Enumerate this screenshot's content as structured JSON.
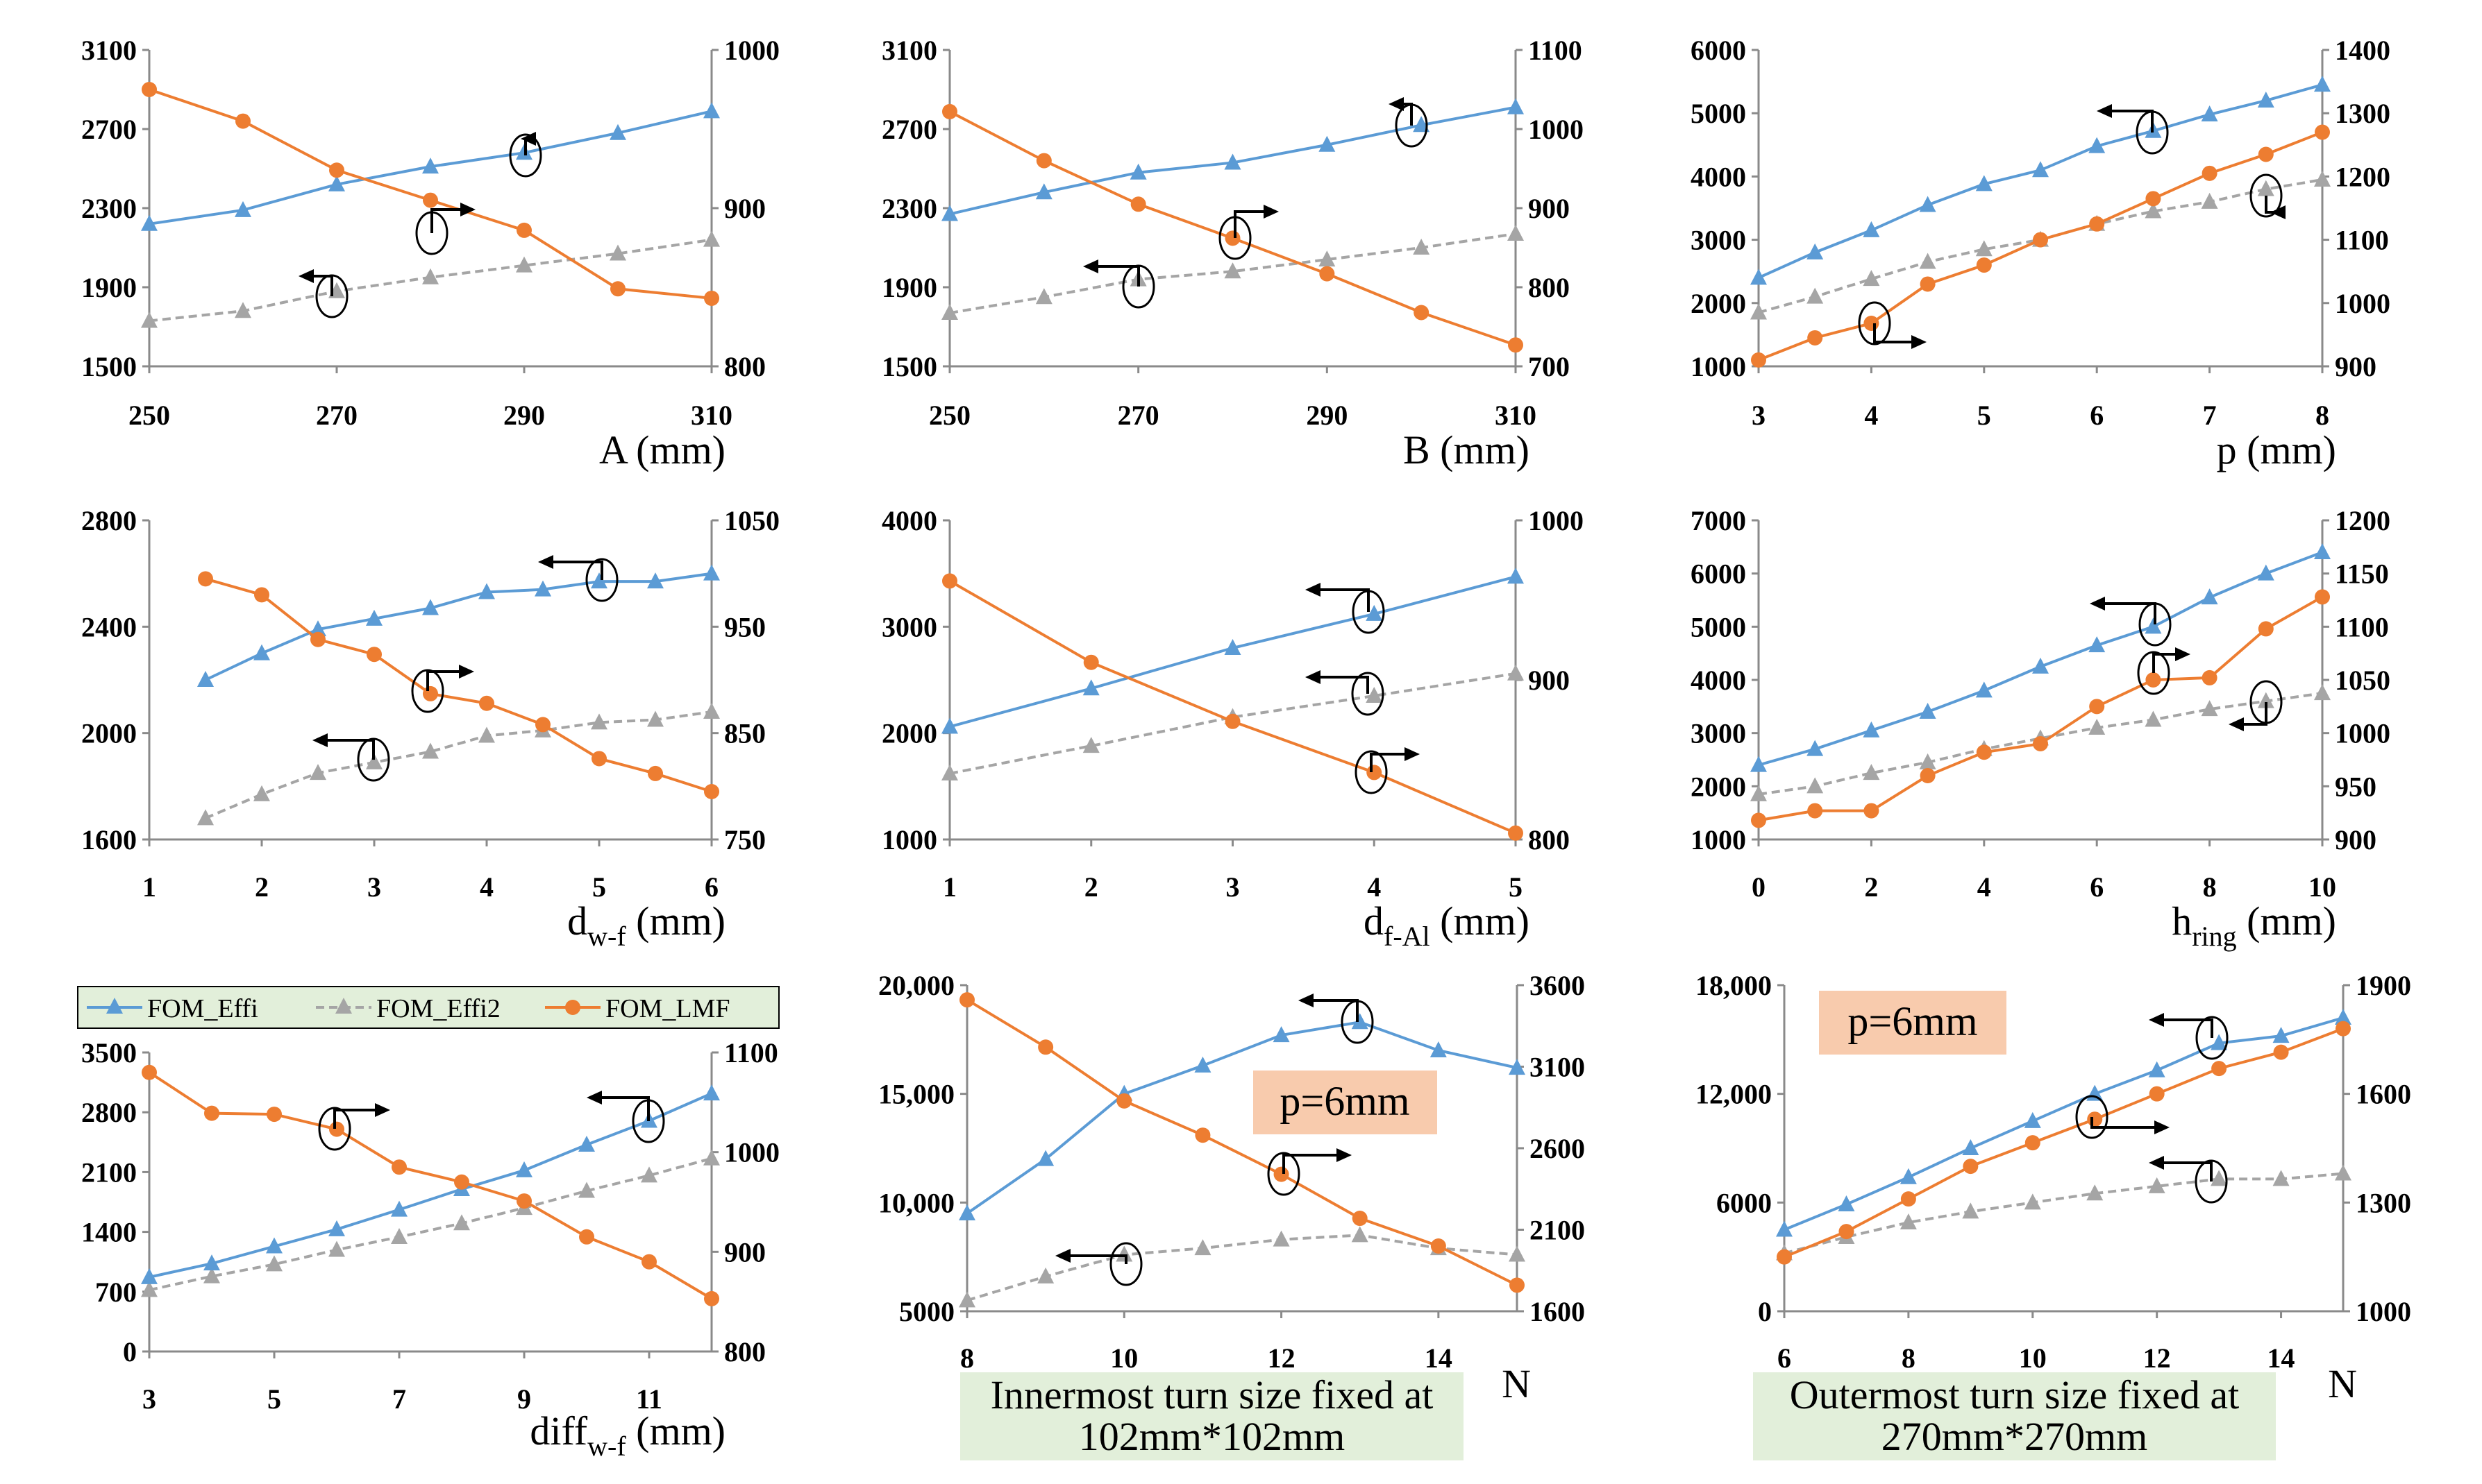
{
  "colors": {
    "effi": "#5B9BD5",
    "effi2": "#A5A5A5",
    "lmf": "#ED7D31",
    "legend_bg": "#E2EFDA",
    "ann_bg": "#F8CBAD"
  },
  "legend": {
    "effi": "FOM_Effi",
    "effi2": "FOM_Effi2",
    "lmf": "FOM_LMF"
  },
  "chart_data": [
    {
      "type": "line",
      "id": "A",
      "xlabel_main": "A",
      "xlabel_sub": "",
      "xlabel_unit": " (mm)",
      "x_ticks": [
        "250",
        "270",
        "290",
        "310"
      ],
      "xlim": [
        250,
        310
      ],
      "ylim_left": [
        1500,
        3100
      ],
      "yticks_left": [
        "1500",
        "1900",
        "2300",
        "2700",
        "3100"
      ],
      "ylim_right": [
        800,
        1000
      ],
      "yticks_right": [
        "800",
        "900",
        "1000"
      ],
      "series": [
        {
          "name": "FOM_Effi",
          "axis": "left",
          "x": [
            250,
            260,
            270,
            280,
            290,
            300,
            310
          ],
          "values": [
            2220,
            2290,
            2420,
            2510,
            2580,
            2680,
            2790
          ]
        },
        {
          "name": "FOM_Effi2",
          "axis": "left",
          "x": [
            250,
            260,
            270,
            280,
            290,
            300,
            310
          ],
          "values": [
            1730,
            1780,
            1880,
            1950,
            2010,
            2070,
            2140
          ]
        },
        {
          "name": "FOM_LMF",
          "axis": "right",
          "x": [
            250,
            260,
            270,
            280,
            290,
            300,
            310
          ],
          "values": [
            975,
            955,
            924,
            905,
            886,
            849,
            843
          ]
        }
      ]
    },
    {
      "type": "line",
      "id": "B",
      "xlabel_main": "B",
      "xlabel_sub": "",
      "xlabel_unit": " (mm)",
      "x_ticks": [
        "250",
        "270",
        "290",
        "310"
      ],
      "xlim": [
        250,
        310
      ],
      "ylim_left": [
        1500,
        3100
      ],
      "yticks_left": [
        "1500",
        "1900",
        "2300",
        "2700",
        "3100"
      ],
      "ylim_right": [
        700,
        1100
      ],
      "yticks_right": [
        "700",
        "800",
        "900",
        "1000",
        "1100"
      ],
      "series": [
        {
          "name": "FOM_Effi",
          "axis": "left",
          "x": [
            250,
            260,
            270,
            280,
            290,
            300,
            310
          ],
          "values": [
            2270,
            2380,
            2480,
            2530,
            2620,
            2720,
            2810
          ]
        },
        {
          "name": "FOM_Effi2",
          "axis": "left",
          "x": [
            250,
            260,
            270,
            280,
            290,
            300,
            310
          ],
          "values": [
            1770,
            1850,
            1940,
            1980,
            2040,
            2100,
            2170
          ]
        },
        {
          "name": "FOM_LMF",
          "axis": "right",
          "x": [
            250,
            260,
            270,
            280,
            290,
            300,
            310
          ],
          "values": [
            1022,
            960,
            905,
            862,
            817,
            768,
            727
          ]
        }
      ]
    },
    {
      "type": "line",
      "id": "p",
      "xlabel_main": "p",
      "xlabel_sub": "",
      "xlabel_unit": " (mm)",
      "x_ticks": [
        "3",
        "4",
        "5",
        "6",
        "7",
        "8"
      ],
      "xlim": [
        3,
        8
      ],
      "ylim_left": [
        1000,
        6000
      ],
      "yticks_left": [
        "1000",
        "2000",
        "3000",
        "4000",
        "5000",
        "6000"
      ],
      "ylim_right": [
        900,
        1400
      ],
      "yticks_right": [
        "900",
        "1000",
        "1100",
        "1200",
        "1300",
        "1400"
      ],
      "series": [
        {
          "name": "FOM_Effi",
          "axis": "left",
          "x": [
            3,
            3.5,
            4,
            4.5,
            5,
            5.5,
            6,
            6.5,
            7,
            7.5,
            8
          ],
          "values": [
            2400,
            2800,
            3150,
            3550,
            3880,
            4100,
            4480,
            4720,
            4980,
            5200,
            5450
          ]
        },
        {
          "name": "FOM_Effi2",
          "axis": "left",
          "x": [
            3,
            3.5,
            4,
            4.5,
            5,
            5.5,
            6,
            6.5,
            7,
            7.5,
            8
          ],
          "values": [
            1850,
            2100,
            2380,
            2650,
            2850,
            3000,
            3250,
            3450,
            3600,
            3800,
            3950
          ]
        },
        {
          "name": "FOM_LMF",
          "axis": "right",
          "x": [
            3,
            3.5,
            4,
            4.5,
            5,
            5.5,
            6,
            6.5,
            7,
            7.5,
            8
          ],
          "values": [
            910,
            945,
            968,
            1030,
            1060,
            1100,
            1125,
            1165,
            1205,
            1235,
            1270
          ]
        }
      ]
    },
    {
      "type": "line",
      "id": "dwf",
      "xlabel_main": "d",
      "xlabel_sub": "w-f",
      "xlabel_unit": " (mm)",
      "x_ticks": [
        "1",
        "2",
        "3",
        "4",
        "5",
        "6"
      ],
      "xlim": [
        1,
        6
      ],
      "ylim_left": [
        1600,
        2800
      ],
      "yticks_left": [
        "1600",
        "2000",
        "2400",
        "2800"
      ],
      "ylim_right": [
        750,
        1050
      ],
      "yticks_right": [
        "750",
        "850",
        "950",
        "1050"
      ],
      "series": [
        {
          "name": "FOM_Effi",
          "axis": "left",
          "x": [
            1.5,
            2,
            2.5,
            3,
            3.5,
            4,
            4.5,
            5,
            5.5,
            6
          ],
          "values": [
            2200,
            2300,
            2390,
            2430,
            2470,
            2530,
            2540,
            2570,
            2570,
            2600
          ]
        },
        {
          "name": "FOM_Effi2",
          "axis": "left",
          "x": [
            1.5,
            2,
            2.5,
            3,
            3.5,
            4,
            4.5,
            5,
            5.5,
            6
          ],
          "values": [
            1680,
            1770,
            1850,
            1890,
            1930,
            1990,
            2010,
            2040,
            2050,
            2080
          ]
        },
        {
          "name": "FOM_LMF",
          "axis": "right",
          "x": [
            1.5,
            2,
            2.5,
            3,
            3.5,
            4,
            4.5,
            5,
            5.5,
            6
          ],
          "values": [
            995,
            980,
            938,
            924,
            887,
            878,
            858,
            826,
            812,
            795
          ]
        }
      ]
    },
    {
      "type": "line",
      "id": "dfal",
      "xlabel_main": "d",
      "xlabel_sub": "f-Al",
      "xlabel_unit": " (mm)",
      "x_ticks": [
        "1",
        "2",
        "3",
        "4",
        "5"
      ],
      "xlim": [
        1,
        5
      ],
      "ylim_left": [
        1000,
        4000
      ],
      "yticks_left": [
        "1000",
        "2000",
        "3000",
        "4000"
      ],
      "ylim_right": [
        800,
        1000
      ],
      "yticks_right": [
        "800",
        "900",
        "1000"
      ],
      "series": [
        {
          "name": "FOM_Effi",
          "axis": "left",
          "x": [
            1,
            2,
            3,
            4,
            5
          ],
          "values": [
            2060,
            2420,
            2800,
            3120,
            3470
          ]
        },
        {
          "name": "FOM_Effi2",
          "axis": "left",
          "x": [
            1,
            2,
            3,
            4,
            5
          ],
          "values": [
            1620,
            1880,
            2150,
            2350,
            2560
          ]
        },
        {
          "name": "FOM_LMF",
          "axis": "right",
          "x": [
            1,
            2,
            3,
            4,
            5
          ],
          "values": [
            962,
            911,
            874,
            842,
            804
          ]
        }
      ]
    },
    {
      "type": "line",
      "id": "hring",
      "xlabel_main": "h",
      "xlabel_sub": "ring",
      "xlabel_unit": " (mm)",
      "x_ticks": [
        "0",
        "2",
        "4",
        "6",
        "8",
        "10"
      ],
      "xlim": [
        0,
        10
      ],
      "ylim_left": [
        1000,
        7000
      ],
      "yticks_left": [
        "1000",
        "2000",
        "3000",
        "4000",
        "5000",
        "6000",
        "7000"
      ],
      "ylim_right": [
        900,
        1200
      ],
      "yticks_right": [
        "900",
        "950",
        "1000",
        "1050",
        "1100",
        "1150",
        "1200"
      ],
      "series": [
        {
          "name": "FOM_Effi",
          "axis": "left",
          "x": [
            0,
            1,
            2,
            3,
            4,
            5,
            6,
            7,
            8,
            9,
            10
          ],
          "values": [
            2400,
            2700,
            3050,
            3400,
            3800,
            4250,
            4650,
            5000,
            5550,
            6000,
            6400
          ]
        },
        {
          "name": "FOM_Effi2",
          "axis": "left",
          "x": [
            0,
            1,
            2,
            3,
            4,
            5,
            6,
            7,
            8,
            9,
            10
          ],
          "values": [
            1850,
            2000,
            2250,
            2450,
            2700,
            2900,
            3100,
            3250,
            3450,
            3600,
            3750
          ]
        },
        {
          "name": "FOM_LMF",
          "axis": "right",
          "x": [
            0,
            1,
            2,
            3,
            4,
            5,
            6,
            7,
            8,
            9,
            10
          ],
          "values": [
            918,
            927,
            927,
            960,
            982,
            990,
            1025,
            1050,
            1052,
            1098,
            1128
          ]
        }
      ]
    },
    {
      "type": "line",
      "id": "diffwf",
      "xlabel_main": "diff",
      "xlabel_sub": "w-f",
      "xlabel_unit": " (mm)",
      "x_ticks": [
        "3",
        "5",
        "7",
        "9",
        "11"
      ],
      "xlim": [
        3,
        12
      ],
      "ylim_left": [
        0,
        3500
      ],
      "yticks_left": [
        "0",
        "700",
        "1400",
        "2100",
        "2800",
        "3500"
      ],
      "ylim_right": [
        800,
        1100
      ],
      "yticks_right": [
        "800",
        "900",
        "1000",
        "1100"
      ],
      "series": [
        {
          "name": "FOM_Effi",
          "axis": "left",
          "x": [
            3,
            4,
            5,
            6,
            7,
            8,
            9,
            10,
            11,
            12
          ],
          "values": [
            870,
            1030,
            1230,
            1430,
            1660,
            1900,
            2120,
            2420,
            2700,
            3020
          ]
        },
        {
          "name": "FOM_Effi2",
          "axis": "left",
          "x": [
            3,
            4,
            5,
            6,
            7,
            8,
            9,
            10,
            11,
            12
          ],
          "values": [
            720,
            880,
            1020,
            1190,
            1340,
            1500,
            1680,
            1880,
            2060,
            2260
          ]
        },
        {
          "name": "FOM_LMF",
          "axis": "right",
          "x": [
            3,
            4,
            5,
            6,
            7,
            8,
            9,
            10,
            11,
            12
          ],
          "values": [
            1080,
            1039,
            1038,
            1023,
            985,
            970,
            951,
            915,
            890,
            853
          ]
        }
      ]
    },
    {
      "type": "line",
      "id": "Ninner",
      "xlabel_main": "N",
      "xlabel_sub": "",
      "xlabel_unit": "",
      "caption": "Innermost turn size fixed at 102mm*102mm",
      "annotation": "p=6mm",
      "x_ticks": [
        "8",
        "10",
        "12",
        "14"
      ],
      "xlim": [
        8,
        15
      ],
      "ylim_left": [
        5000,
        20000
      ],
      "yticks_left": [
        "5000",
        "10,000",
        "15,000",
        "20,000"
      ],
      "ylim_right": [
        1600,
        3600
      ],
      "yticks_right": [
        "1600",
        "2100",
        "2600",
        "3100",
        "3600"
      ],
      "series": [
        {
          "name": "FOM_Effi",
          "axis": "left",
          "x": [
            8,
            9,
            10,
            11,
            12,
            13,
            14,
            15
          ],
          "values": [
            9500,
            12000,
            15000,
            16300,
            17700,
            18300,
            17000,
            16200
          ]
        },
        {
          "name": "FOM_Effi2",
          "axis": "left",
          "x": [
            8,
            9,
            10,
            11,
            12,
            13,
            14,
            15
          ],
          "values": [
            5500,
            6600,
            7600,
            7900,
            8300,
            8500,
            7900,
            7600
          ]
        },
        {
          "name": "FOM_LMF",
          "axis": "right",
          "x": [
            8,
            9,
            10,
            11,
            12,
            13,
            14,
            15
          ],
          "values": [
            3510,
            3220,
            2890,
            2680,
            2440,
            2170,
            2000,
            1760
          ]
        }
      ]
    },
    {
      "type": "line",
      "id": "Nouter",
      "xlabel_main": "N",
      "xlabel_sub": "",
      "xlabel_unit": "",
      "caption": "Outermost turn size fixed at 270mm*270mm",
      "annotation": "p=6mm",
      "x_ticks": [
        "6",
        "8",
        "10",
        "12",
        "14"
      ],
      "xlim": [
        6,
        15
      ],
      "ylim_left": [
        0,
        18000
      ],
      "yticks_left": [
        "0",
        "6000",
        "12,000",
        "18,000"
      ],
      "ylim_right": [
        1000,
        1900
      ],
      "yticks_right": [
        "1000",
        "1300",
        "1600",
        "1900"
      ],
      "series": [
        {
          "name": "FOM_Effi",
          "axis": "left",
          "x": [
            6,
            7,
            8,
            9,
            10,
            11,
            12,
            13,
            14,
            15
          ],
          "values": [
            4500,
            5900,
            7400,
            9000,
            10500,
            12000,
            13300,
            14800,
            15200,
            16200
          ]
        },
        {
          "name": "FOM_Effi2",
          "axis": "left",
          "x": [
            6,
            7,
            8,
            9,
            10,
            11,
            12,
            13,
            14,
            15
          ],
          "values": [
            3200,
            4100,
            4900,
            5500,
            6000,
            6500,
            6900,
            7300,
            7300,
            7600
          ]
        },
        {
          "name": "FOM_LMF",
          "axis": "right",
          "x": [
            6,
            7,
            8,
            9,
            10,
            11,
            12,
            13,
            14,
            15
          ],
          "values": [
            1150,
            1220,
            1310,
            1400,
            1465,
            1530,
            1600,
            1670,
            1715,
            1780
          ]
        }
      ]
    }
  ]
}
